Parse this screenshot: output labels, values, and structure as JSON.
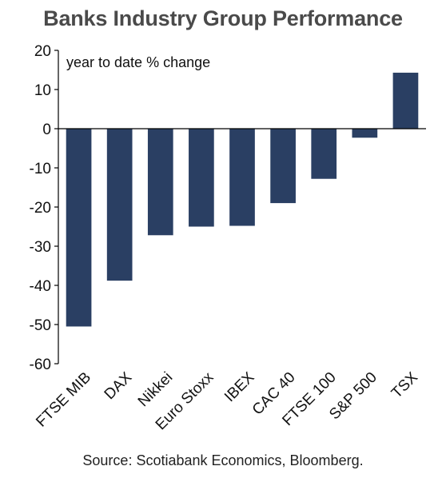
{
  "chart_data": {
    "type": "bar",
    "title": "Banks Industry Group Performance",
    "annotation": "year to date % change",
    "source": "Source: Scotiabank Economics, Bloomberg.",
    "categories": [
      "FTSE MIB",
      "DAX",
      "Nikkei",
      "Euro Stoxx",
      "IBEX",
      "CAC 40",
      "FTSE 100",
      "S&P 500",
      "TSX"
    ],
    "values": [
      -50.5,
      -38.8,
      -27.2,
      -25.0,
      -24.8,
      -19.0,
      -12.8,
      -2.3,
      14.3
    ],
    "ylim": [
      -60,
      20
    ],
    "yticks": [
      20,
      10,
      0,
      -10,
      -20,
      -30,
      -40,
      -50,
      -60
    ],
    "bar_color": "#2a3f63",
    "xlabel": "",
    "ylabel": "",
    "grid": false
  }
}
